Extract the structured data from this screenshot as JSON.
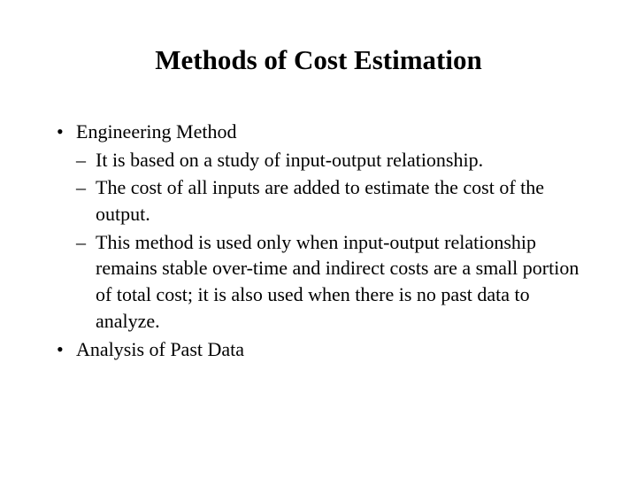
{
  "title": "Methods of Cost Estimation",
  "bullets": [
    {
      "text": "Engineering Method",
      "subitems": [
        "It is based on a study of input-output relationship.",
        "The cost of all inputs are added to estimate the cost of the output.",
        "This method is used only when input-output relationship remains stable over-time and indirect costs are a small portion of total cost; it is also used when there is no past data to analyze."
      ]
    },
    {
      "text": "Analysis of Past Data",
      "subitems": []
    }
  ],
  "style": {
    "background_color": "#ffffff",
    "text_color": "#000000",
    "font_family": "Times New Roman",
    "title_fontsize": 31,
    "title_fontweight": "bold",
    "body_fontsize": 22,
    "line_height": 1.35,
    "bullet_marker": "•",
    "sub_marker": "–"
  }
}
